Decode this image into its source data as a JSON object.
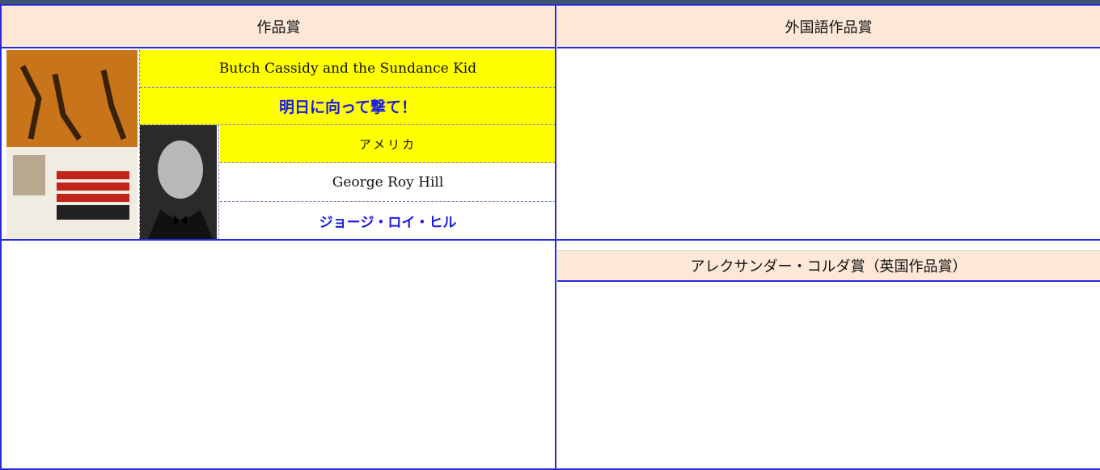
{
  "table": {
    "headers": [
      "作品賞",
      "外国語作品賞"
    ],
    "best_film": {
      "original_title": "Butch Cassidy and the Sundance Kid",
      "japanese_title": "明日に向って撃て！",
      "country": "アメリカ",
      "director": "George Roy Hill",
      "director_japanese": "ジョージ・ロイ・ヒル"
    },
    "korda_award": {
      "title": "アレクサンダー・コルダ賞（英国作品賞）"
    }
  }
}
